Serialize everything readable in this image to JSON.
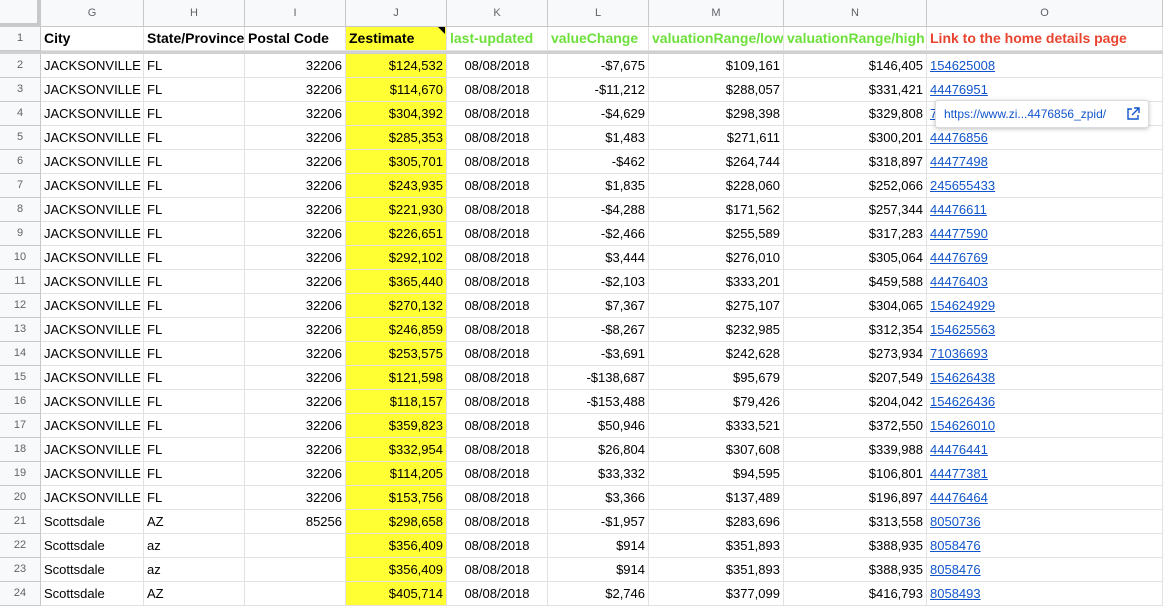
{
  "column_letters": [
    "G",
    "H",
    "I",
    "J",
    "K",
    "L",
    "M",
    "N",
    "O"
  ],
  "headers": [
    "City",
    "State/Province",
    "Postal Code",
    "Zestimate",
    "last-updated",
    "valueChange",
    "valuationRange/low",
    "valuationRange/high",
    "Link to the home details page"
  ],
  "header_colors": {
    "green": "#6ee03c",
    "red": "#e8442f",
    "highlight": "#ffff33",
    "link": "#1155cc"
  },
  "rows": [
    {
      "n": "2",
      "city": "JACKSONVILLE",
      "state": "FL",
      "postal": "32206",
      "zest": "$124,532",
      "updated": "08/08/2018",
      "change": "-$7,675",
      "low": "$109,161",
      "high": "$146,405",
      "link": "154625008"
    },
    {
      "n": "3",
      "city": "JACKSONVILLE",
      "state": "FL",
      "postal": "32206",
      "zest": "$114,670",
      "updated": "08/08/2018",
      "change": "-$11,212",
      "low": "$288,057",
      "high": "$331,421",
      "link": "44476951"
    },
    {
      "n": "4",
      "city": "JACKSONVILLE",
      "state": "FL",
      "postal": "32206",
      "zest": "$304,392",
      "updated": "08/08/2018",
      "change": "-$4,629",
      "low": "$298,398",
      "high": "$329,808",
      "link": "7"
    },
    {
      "n": "5",
      "city": "JACKSONVILLE",
      "state": "FL",
      "postal": "32206",
      "zest": "$285,353",
      "updated": "08/08/2018",
      "change": "$1,483",
      "low": "$271,611",
      "high": "$300,201",
      "link": "44476856"
    },
    {
      "n": "6",
      "city": "JACKSONVILLE",
      "state": "FL",
      "postal": "32206",
      "zest": "$305,701",
      "updated": "08/08/2018",
      "change": "-$462",
      "low": "$264,744",
      "high": "$318,897",
      "link": "44477498"
    },
    {
      "n": "7",
      "city": "JACKSONVILLE",
      "state": "FL",
      "postal": "32206",
      "zest": "$243,935",
      "updated": "08/08/2018",
      "change": "$1,835",
      "low": "$228,060",
      "high": "$252,066",
      "link": "245655433"
    },
    {
      "n": "8",
      "city": "JACKSONVILLE",
      "state": "FL",
      "postal": "32206",
      "zest": "$221,930",
      "updated": "08/08/2018",
      "change": "-$4,288",
      "low": "$171,562",
      "high": "$257,344",
      "link": "44476611"
    },
    {
      "n": "9",
      "city": "JACKSONVILLE",
      "state": "FL",
      "postal": "32206",
      "zest": "$226,651",
      "updated": "08/08/2018",
      "change": "-$2,466",
      "low": "$255,589",
      "high": "$317,283",
      "link": "44477590"
    },
    {
      "n": "10",
      "city": "JACKSONVILLE",
      "state": "FL",
      "postal": "32206",
      "zest": "$292,102",
      "updated": "08/08/2018",
      "change": "$3,444",
      "low": "$276,010",
      "high": "$305,064",
      "link": "44476769"
    },
    {
      "n": "11",
      "city": "JACKSONVILLE",
      "state": "FL",
      "postal": "32206",
      "zest": "$365,440",
      "updated": "08/08/2018",
      "change": "-$2,103",
      "low": "$333,201",
      "high": "$459,588",
      "link": "44476403"
    },
    {
      "n": "12",
      "city": "JACKSONVILLE",
      "state": "FL",
      "postal": "32206",
      "zest": "$270,132",
      "updated": "08/08/2018",
      "change": "$7,367",
      "low": "$275,107",
      "high": "$304,065",
      "link": "154624929"
    },
    {
      "n": "13",
      "city": "JACKSONVILLE",
      "state": "FL",
      "postal": "32206",
      "zest": "$246,859",
      "updated": "08/08/2018",
      "change": "-$8,267",
      "low": "$232,985",
      "high": "$312,354",
      "link": "154625563"
    },
    {
      "n": "14",
      "city": "JACKSONVILLE",
      "state": "FL",
      "postal": "32206",
      "zest": "$253,575",
      "updated": "08/08/2018",
      "change": "-$3,691",
      "low": "$242,628",
      "high": "$273,934",
      "link": "71036693"
    },
    {
      "n": "15",
      "city": "JACKSONVILLE",
      "state": "FL",
      "postal": "32206",
      "zest": "$121,598",
      "updated": "08/08/2018",
      "change": "-$138,687",
      "low": "$95,679",
      "high": "$207,549",
      "link": "154626438"
    },
    {
      "n": "16",
      "city": "JACKSONVILLE",
      "state": "FL",
      "postal": "32206",
      "zest": "$118,157",
      "updated": "08/08/2018",
      "change": "-$153,488",
      "low": "$79,426",
      "high": "$204,042",
      "link": "154626436"
    },
    {
      "n": "17",
      "city": "JACKSONVILLE",
      "state": "FL",
      "postal": "32206",
      "zest": "$359,823",
      "updated": "08/08/2018",
      "change": "$50,946",
      "low": "$333,521",
      "high": "$372,550",
      "link": "154626010"
    },
    {
      "n": "18",
      "city": "JACKSONVILLE",
      "state": "FL",
      "postal": "32206",
      "zest": "$332,954",
      "updated": "08/08/2018",
      "change": "$26,804",
      "low": "$307,608",
      "high": "$339,988",
      "link": "44476441"
    },
    {
      "n": "19",
      "city": "JACKSONVILLE",
      "state": "FL",
      "postal": "32206",
      "zest": "$114,205",
      "updated": "08/08/2018",
      "change": "$33,332",
      "low": "$94,595",
      "high": "$106,801",
      "link": "44477381"
    },
    {
      "n": "20",
      "city": "JACKSONVILLE",
      "state": "FL",
      "postal": "32206",
      "zest": "$153,756",
      "updated": "08/08/2018",
      "change": "$3,366",
      "low": "$137,489",
      "high": "$196,897",
      "link": "44476464"
    },
    {
      "n": "21",
      "city": "Scottsdale",
      "state": "AZ",
      "postal": "85256",
      "zest": "$298,658",
      "updated": "08/08/2018",
      "change": "-$1,957",
      "low": "$283,696",
      "high": "$313,558",
      "link": "8050736"
    },
    {
      "n": "22",
      "city": "Scottsdale",
      "state": "az",
      "postal": "",
      "zest": "$356,409",
      "updated": "08/08/2018",
      "change": "$914",
      "low": "$351,893",
      "high": "$388,935",
      "link": "8058476"
    },
    {
      "n": "23",
      "city": "Scottsdale",
      "state": "az",
      "postal": "",
      "zest": "$356,409",
      "updated": "08/08/2018",
      "change": "$914",
      "low": "$351,893",
      "high": "$388,935",
      "link": "8058476"
    },
    {
      "n": "24",
      "city": "Scottsdale",
      "state": "AZ",
      "postal": "",
      "zest": "$405,714",
      "updated": "08/08/2018",
      "change": "$2,746",
      "low": "$377,099",
      "high": "$416,793",
      "link": "8058493"
    }
  ],
  "tooltip": {
    "url": "https://www.zi...4476856_zpid/",
    "icon": "external-link-icon"
  }
}
